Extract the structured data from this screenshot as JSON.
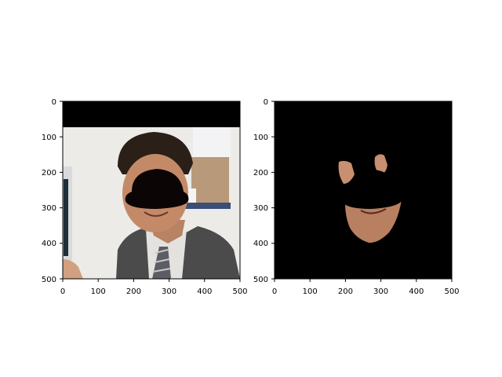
{
  "chart_data": [
    {
      "type": "image",
      "title": "",
      "xlabel": "",
      "ylabel": "",
      "xlim": [
        0,
        500
      ],
      "ylim": [
        500,
        0
      ],
      "x_ticks": [
        "0",
        "100",
        "200",
        "300",
        "400",
        "500"
      ],
      "y_ticks": [
        "0",
        "100",
        "200",
        "300",
        "400",
        "500"
      ],
      "image": "photo of a man in a suit and tie in an office, face region blacked out by an occluder mask"
    },
    {
      "type": "image",
      "title": "",
      "xlabel": "",
      "ylabel": "",
      "xlim": [
        0,
        500
      ],
      "ylim": [
        500,
        0
      ],
      "x_ticks": [
        "0",
        "100",
        "200",
        "300",
        "400",
        "500"
      ],
      "y_ticks": [
        "0",
        "100",
        "200",
        "300",
        "400",
        "500"
      ],
      "image": "segmented face skin region on black background with occluder hole"
    }
  ],
  "colors": {
    "background": "#000000",
    "wall": "#e8e8e6",
    "skin": "#c48a68",
    "suit": "#4a4a4a",
    "shirt": "#e6e4e0",
    "hair": "#2a2018"
  }
}
